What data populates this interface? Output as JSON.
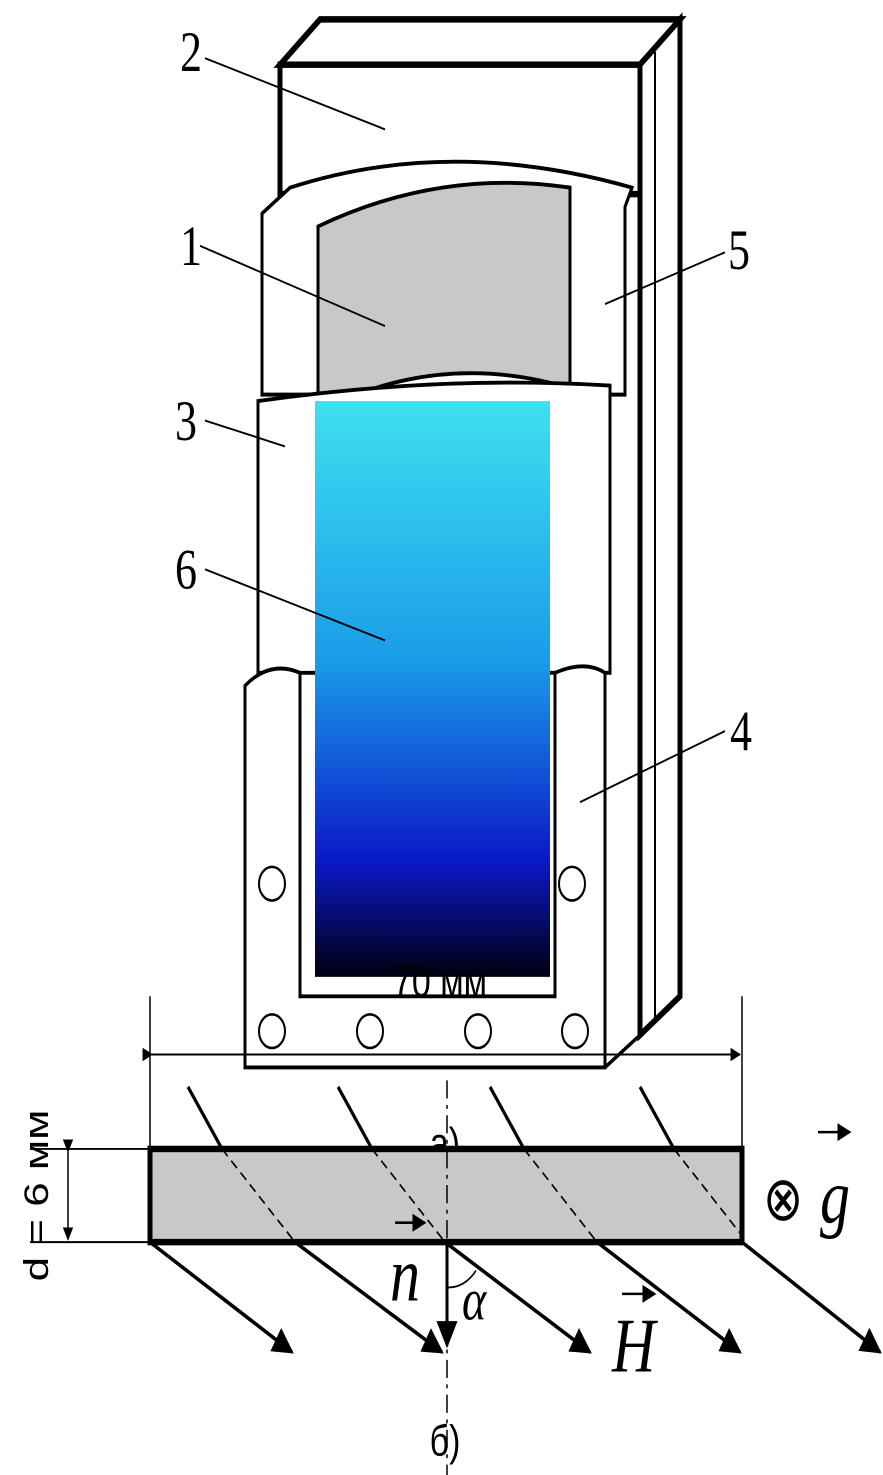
{
  "figure_a": {
    "labels": [
      "1",
      "2",
      "3",
      "4",
      "5",
      "6"
    ],
    "caption": "а)"
  },
  "figure_b": {
    "width_label": "70 мм",
    "thickness_label": "d = 6 мм",
    "into_page": "⊗",
    "gravity": "g",
    "normal": "n",
    "angle": "α",
    "field": "H",
    "caption": "б)"
  }
}
